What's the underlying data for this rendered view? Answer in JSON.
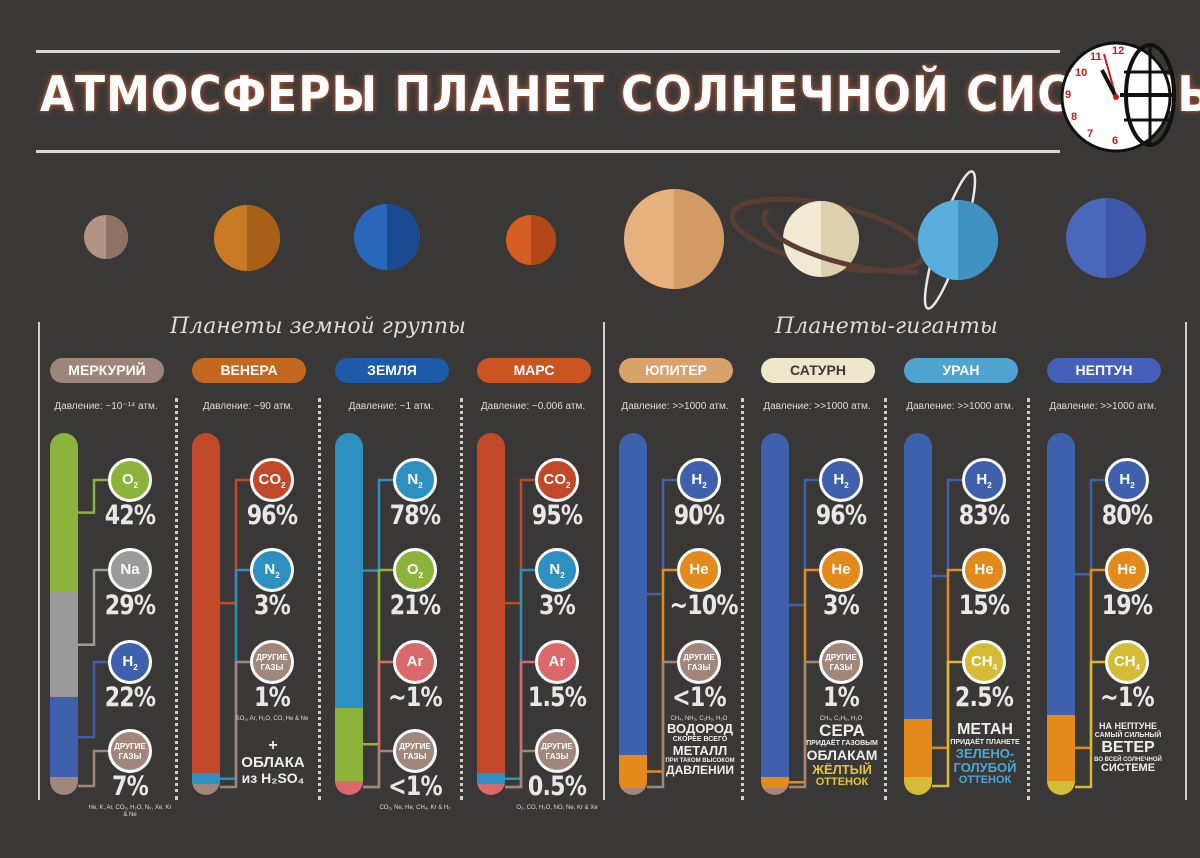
{
  "title": "АТМОСФЕРЫ ПЛАНЕТ СОЛНЕЧНОЙ СИСТЕМЫ",
  "logo": {
    "numbers": [
      "12",
      "11",
      "10",
      "9",
      "8",
      "7",
      "6"
    ]
  },
  "groups": {
    "terrestrial": "Планеты земной группы",
    "giants": "Планеты-гиганты"
  },
  "colors": {
    "O2": "#8db43a",
    "Na": "#9a9a9a",
    "H2": "#3f61ad",
    "other": "#a0867b",
    "CO2": "#c2482a",
    "N2": "#2e8fc1",
    "Ar": "#d9696b",
    "He": "#e48a1a",
    "CH4": "#d6bb37"
  },
  "planets": [
    {
      "name": "МЕРКУРИЙ",
      "pill_color": "#9e857b",
      "pressure": "Давление: ~10⁻¹⁴ атм.",
      "gases": [
        {
          "label": "O",
          "sub": "2",
          "pct": "42%",
          "color": "#8db43a"
        },
        {
          "label": "Na",
          "sub": "",
          "pct": "29%",
          "color": "#9a9a9a"
        },
        {
          "label": "H",
          "sub": "2",
          "pct": "22%",
          "color": "#3f61ad"
        },
        {
          "label": "ДРУГИЕ ГАЗЫ",
          "sub": "",
          "pct": "7%",
          "color": "#a0867b",
          "note": "He, K, Ar, CO₂, H₂O, N₂, Xe, Kr & Ne"
        }
      ],
      "tube": [
        {
          "color": "#8db43a",
          "frac": 0.44
        },
        {
          "color": "#9a9a9a",
          "frac": 0.29
        },
        {
          "color": "#3f61ad",
          "frac": 0.22
        },
        {
          "color": "#a0867b",
          "frac": 0.05
        }
      ],
      "desc": []
    },
    {
      "name": "ВЕНЕРА",
      "pill_color": "#c5681f",
      "pressure": "Давление: ~90 атм.",
      "gases": [
        {
          "label": "CO",
          "sub": "2",
          "pct": "96%",
          "color": "#c2482a"
        },
        {
          "label": "N",
          "sub": "2",
          "pct": "3%",
          "color": "#2e8fc1"
        },
        {
          "label": "ДРУГИЕ ГАЗЫ",
          "sub": "",
          "pct": "1%",
          "color": "#a0867b",
          "note": "SO₂, Ar, H₂O, CO, He & Ne"
        }
      ],
      "tube": [
        {
          "color": "#c2482a",
          "frac": 0.94
        },
        {
          "color": "#2e8fc1",
          "frac": 0.03
        },
        {
          "color": "#a0867b",
          "frac": 0.03
        }
      ],
      "desc": [
        {
          "text": "+",
          "size": 16
        },
        {
          "text": "ОБЛАКА",
          "size": 15
        },
        {
          "text": "из H₂SO₄",
          "size": 14
        }
      ]
    },
    {
      "name": "ЗЕМЛЯ",
      "pill_color": "#1d5aa8",
      "pressure": "Давление: ~1 атм.",
      "gases": [
        {
          "label": "N",
          "sub": "2",
          "pct": "78%",
          "color": "#2e8fc1"
        },
        {
          "label": "O",
          "sub": "2",
          "pct": "21%",
          "color": "#8db43a"
        },
        {
          "label": "Ar",
          "sub": "",
          "pct": "~1%",
          "color": "#d9696b"
        },
        {
          "label": "ДРУГИЕ ГАЗЫ",
          "sub": "",
          "pct": "<1%",
          "color": "#a0867b",
          "note": "CO₂, Ne, He, CH₄, Kr & H₂"
        }
      ],
      "tube": [
        {
          "color": "#2e8fc1",
          "frac": 0.76
        },
        {
          "color": "#8db43a",
          "frac": 0.2
        },
        {
          "color": "#d9696b",
          "frac": 0.04
        }
      ],
      "desc": []
    },
    {
      "name": "МАРС",
      "pill_color": "#cc5420",
      "pressure": "Давление: ~0.006 атм.",
      "gases": [
        {
          "label": "CO",
          "sub": "2",
          "pct": "95%",
          "color": "#c2482a"
        },
        {
          "label": "N",
          "sub": "2",
          "pct": "3%",
          "color": "#2e8fc1"
        },
        {
          "label": "Ar",
          "sub": "",
          "pct": "1.5%",
          "color": "#d9696b"
        },
        {
          "label": "ДРУГИЕ ГАЗЫ",
          "sub": "",
          "pct": "0.5%",
          "color": "#a0867b",
          "note": "O₂, CO, H₂O, NO, Ne, Kr & Xe"
        }
      ],
      "tube": [
        {
          "color": "#c2482a",
          "frac": 0.94
        },
        {
          "color": "#2e8fc1",
          "frac": 0.03
        },
        {
          "color": "#d9696b",
          "frac": 0.03
        }
      ],
      "desc": []
    },
    {
      "name": "ЮПИТЕР",
      "pill_color": "#d9a26b",
      "pressure": "Давление: >>1000 атм.",
      "gases": [
        {
          "label": "H",
          "sub": "2",
          "pct": "90%",
          "color": "#3f61ad"
        },
        {
          "label": "He",
          "sub": "",
          "pct": "~10%",
          "color": "#e48a1a"
        },
        {
          "label": "ДРУГИЕ ГАЗЫ",
          "sub": "",
          "pct": "<1%",
          "color": "#a0867b",
          "note": "CH₄, NH₃, C₂H₆, H₂O"
        }
      ],
      "tube": [
        {
          "color": "#3f61ad",
          "frac": 0.89
        },
        {
          "color": "#e48a1a",
          "frac": 0.09
        },
        {
          "color": "#a0867b",
          "frac": 0.02
        }
      ],
      "desc": [
        {
          "text": "ВОДОРОД",
          "size": 13
        },
        {
          "text": "СКОРЕЕ ВСЕГО",
          "size": 7
        },
        {
          "text": "МЕТАЛЛ",
          "size": 13
        },
        {
          "text": "ПРИ ТАКОМ ВЫСОКОМ",
          "size": 6
        },
        {
          "text": "ДАВЛЕНИИ",
          "size": 12
        }
      ]
    },
    {
      "name": "САТУРН",
      "pill_color": "#f0e6cc",
      "pill_text": "#3a3836",
      "pressure": "Давление: >>1000 атм.",
      "gases": [
        {
          "label": "H",
          "sub": "2",
          "pct": "96%",
          "color": "#3f61ad"
        },
        {
          "label": "He",
          "sub": "",
          "pct": "3%",
          "color": "#e48a1a"
        },
        {
          "label": "ДРУГИЕ ГАЗЫ",
          "sub": "",
          "pct": "1%",
          "color": "#a0867b",
          "note": "CH₄, C₂H₆, H₂O"
        }
      ],
      "tube": [
        {
          "color": "#3f61ad",
          "frac": 0.95
        },
        {
          "color": "#e48a1a",
          "frac": 0.03
        },
        {
          "color": "#a0867b",
          "frac": 0.02
        }
      ],
      "desc": [
        {
          "text": "СЕРА",
          "size": 17
        },
        {
          "text": "ПРИДАЁТ ГАЗОВЫМ",
          "size": 7
        },
        {
          "text": "ОБЛАКАМ",
          "size": 14
        },
        {
          "text": "ЖЁЛТЫЙ",
          "size": 13,
          "color": "#e5c636"
        },
        {
          "text": "ОТТЕНОК",
          "size": 11,
          "color": "#e5c636"
        }
      ]
    },
    {
      "name": "УРАН",
      "pill_color": "#4fa3d1",
      "pressure": "Давление: >>1000 атм.",
      "gases": [
        {
          "label": "H",
          "sub": "2",
          "pct": "83%",
          "color": "#3f61ad"
        },
        {
          "label": "He",
          "sub": "",
          "pct": "15%",
          "color": "#e48a1a"
        },
        {
          "label": "CH",
          "sub": "4",
          "pct": "2.5%",
          "color": "#d6bb37"
        }
      ],
      "tube": [
        {
          "color": "#3f61ad",
          "frac": 0.79
        },
        {
          "color": "#e48a1a",
          "frac": 0.16
        },
        {
          "color": "#d6bb37",
          "frac": 0.05
        }
      ],
      "desc": [
        {
          "text": "МЕТАН",
          "size": 16
        },
        {
          "text": "ПРИДАЁТ ПЛАНЕТЕ",
          "size": 7
        },
        {
          "text": "ЗЕЛЕНО-",
          "size": 13,
          "color": "#4aa8d8"
        },
        {
          "text": "ГОЛУБОЙ",
          "size": 13,
          "color": "#4aa8d8"
        },
        {
          "text": "ОТТЕНОК",
          "size": 11,
          "color": "#4aa8d8"
        }
      ]
    },
    {
      "name": "НЕПТУН",
      "pill_color": "#4460b8",
      "pressure": "Давление: >>1000 атм.",
      "gases": [
        {
          "label": "H",
          "sub": "2",
          "pct": "80%",
          "color": "#3f61ad"
        },
        {
          "label": "He",
          "sub": "",
          "pct": "19%",
          "color": "#e48a1a"
        },
        {
          "label": "CH",
          "sub": "4",
          "pct": "~1%",
          "color": "#d6bb37"
        }
      ],
      "tube": [
        {
          "color": "#3f61ad",
          "frac": 0.78
        },
        {
          "color": "#e48a1a",
          "frac": 0.18
        },
        {
          "color": "#d6bb37",
          "frac": 0.04
        }
      ],
      "desc": [
        {
          "text": "НА НЕПТУНЕ",
          "size": 9
        },
        {
          "text": "САМЫЙ СИЛЬНЫЙ",
          "size": 7
        },
        {
          "text": "ВЕТЕР",
          "size": 16
        },
        {
          "text": "ВО ВСЕЙ СОЛНЕЧНОЙ",
          "size": 6
        },
        {
          "text": "СИСТЕМЕ",
          "size": 11
        }
      ]
    }
  ]
}
